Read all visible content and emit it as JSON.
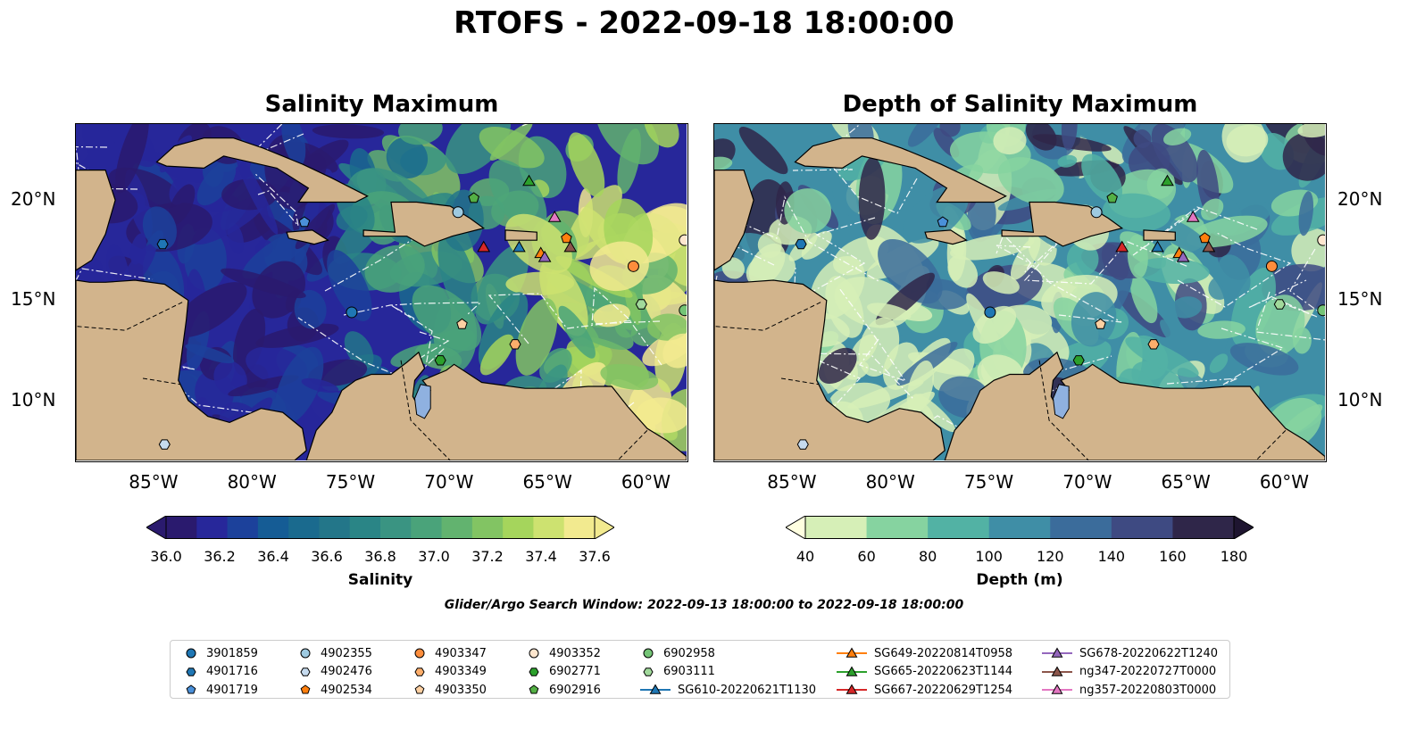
{
  "suptitle": "RTOFS - 2022-09-18 18:00:00",
  "panels": [
    {
      "title": "Salinity Maximum",
      "colorbar_label": "Salinity",
      "cbar_ticks": [
        "36.0",
        "36.2",
        "36.4",
        "36.6",
        "36.8",
        "37.0",
        "37.2",
        "37.4",
        "37.6"
      ],
      "cbar_colors": [
        "#2a1a6e",
        "#27279a",
        "#1c419b",
        "#155c95",
        "#1a6a8e",
        "#237689",
        "#2a8586",
        "#3a9482",
        "#4aa37a",
        "#62b36f",
        "#82c463",
        "#a5d55c",
        "#cde270",
        "#f2ea8f"
      ]
    },
    {
      "title": "Depth of Salinity Maximum",
      "colorbar_label": "Depth (m)",
      "cbar_ticks": [
        "40",
        "60",
        "80",
        "100",
        "120",
        "140",
        "160",
        "180"
      ],
      "cbar_colors": [
        "#d6efb7",
        "#86d3a0",
        "#52b2a4",
        "#3f8ea6",
        "#3b6c9b",
        "#3e4a82",
        "#2f2649"
      ]
    }
  ],
  "x_ticks": [
    "85°W",
    "80°W",
    "75°W",
    "70°W",
    "65°W",
    "60°W"
  ],
  "y_ticks": [
    "20°N",
    "15°N",
    "10°N"
  ],
  "search_window": "Glider/Argo Search Window: 2022-09-13 18:00:00 to 2022-09-18 18:00:00",
  "colors": {
    "land": "#d2b48c",
    "lake": "#8fb1e0"
  },
  "legend": [
    {
      "label": "3901859",
      "marker": "circle",
      "color": "#1f77b4"
    },
    {
      "label": "4901716",
      "marker": "hexagon",
      "color": "#1f77b4"
    },
    {
      "label": "4901719",
      "marker": "pentagon",
      "color": "#4a90d9"
    },
    {
      "label": "4902355",
      "marker": "circle",
      "color": "#9ecae1"
    },
    {
      "label": "4902476",
      "marker": "hexagon",
      "color": "#c6dbef"
    },
    {
      "label": "4902534",
      "marker": "pentagon",
      "color": "#ff7f0e"
    },
    {
      "label": "4903347",
      "marker": "circle",
      "color": "#fd8d3c"
    },
    {
      "label": "4903349",
      "marker": "hexagon",
      "color": "#fdae6b"
    },
    {
      "label": "4903350",
      "marker": "pentagon",
      "color": "#fdd0a2"
    },
    {
      "label": "4903352",
      "marker": "circle",
      "color": "#fee6ce"
    },
    {
      "label": "6902771",
      "marker": "hexagon",
      "color": "#2ca02c"
    },
    {
      "label": "6902916",
      "marker": "pentagon",
      "color": "#54b045"
    },
    {
      "label": "6902958",
      "marker": "circle",
      "color": "#74c476"
    },
    {
      "label": "6903111",
      "marker": "hexagon",
      "color": "#a1d99b"
    },
    {
      "label": "SG610-20220621T1130",
      "marker": "triangle-line",
      "color": "#1f77b4"
    },
    {
      "label": "SG649-20220814T0958",
      "marker": "triangle-line",
      "color": "#ff7f0e"
    },
    {
      "label": "SG665-20220623T1144",
      "marker": "triangle-line",
      "color": "#2ca02c"
    },
    {
      "label": "SG667-20220629T1254",
      "marker": "triangle-line",
      "color": "#d62728"
    },
    {
      "label": "SG678-20220622T1240",
      "marker": "triangle-line",
      "color": "#9467bd"
    },
    {
      "label": "ng347-20220727T0000",
      "marker": "triangle-line",
      "color": "#8c564b"
    },
    {
      "label": "ng357-20220803T0000",
      "marker": "triangle-line",
      "color": "#e377c2"
    }
  ],
  "observations": [
    {
      "id": "3901859",
      "lon": -75.0,
      "lat": 14.4
    },
    {
      "id": "4901716",
      "lon": -84.6,
      "lat": 17.8
    },
    {
      "id": "4901719",
      "lon": -77.4,
      "lat": 18.9
    },
    {
      "id": "4902355",
      "lon": -69.6,
      "lat": 19.4
    },
    {
      "id": "4902476",
      "lon": -84.5,
      "lat": 7.8
    },
    {
      "id": "4902534",
      "lon": -64.1,
      "lat": 18.1
    },
    {
      "id": "4903347",
      "lon": -60.7,
      "lat": 16.7
    },
    {
      "id": "4903349",
      "lon": -66.7,
      "lat": 12.8
    },
    {
      "id": "4903350",
      "lon": -69.4,
      "lat": 13.8
    },
    {
      "id": "4903352",
      "lon": -58.1,
      "lat": 18.0
    },
    {
      "id": "6902771",
      "lon": -70.5,
      "lat": 12.0
    },
    {
      "id": "6902916",
      "lon": -68.8,
      "lat": 20.1
    },
    {
      "id": "6902958",
      "lon": -58.1,
      "lat": 14.5
    },
    {
      "id": "6903111",
      "lon": -60.3,
      "lat": 14.8
    },
    {
      "id": "SG610-20220621T1130",
      "lon": -66.5,
      "lat": 17.6
    },
    {
      "id": "SG649-20220814T0958",
      "lon": -65.4,
      "lat": 17.3
    },
    {
      "id": "SG665-20220623T1144",
      "lon": -66.0,
      "lat": 20.9
    },
    {
      "id": "SG667-20220629T1254",
      "lon": -68.3,
      "lat": 17.6
    },
    {
      "id": "SG678-20220622T1240",
      "lon": -65.2,
      "lat": 17.1
    },
    {
      "id": "ng347-20220727T0000",
      "lon": -63.9,
      "lat": 17.6
    },
    {
      "id": "ng357-20220803T0000",
      "lon": -64.7,
      "lat": 19.1
    }
  ]
}
